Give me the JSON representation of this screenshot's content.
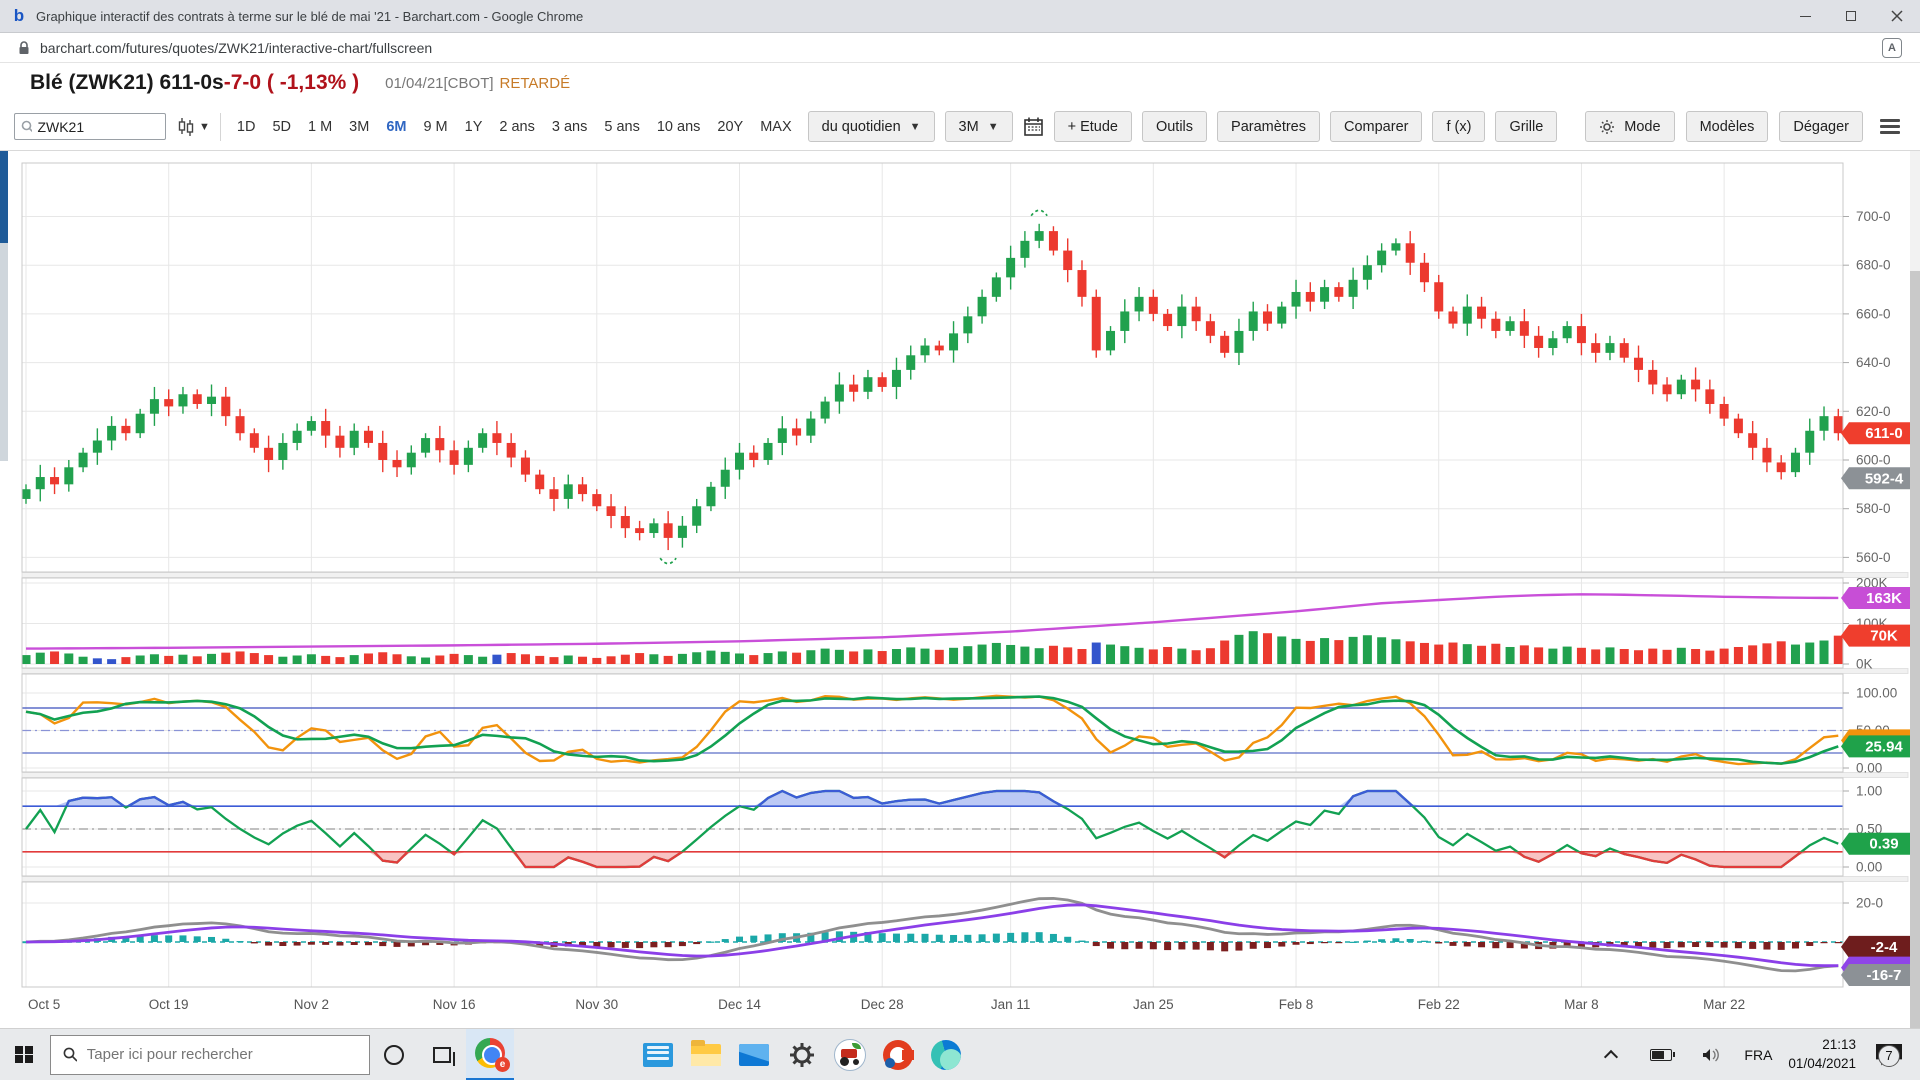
{
  "window": {
    "title": "Graphique interactif des contrats à terme sur le blé de mai '21 - Barchart.com - Google Chrome"
  },
  "browser": {
    "url": "barchart.com/futures/quotes/ZWK21/interactive-chart/fullscreen"
  },
  "header": {
    "title": "Blé (ZWK21) 611-0s",
    "change": "-7-0 ( -1,13% )",
    "session_date": "01/04/21",
    "exchange": "[CBOT]",
    "delay_label": "RETARDÉ"
  },
  "toolbar": {
    "symbol_value": "ZWK21",
    "ranges": [
      "1D",
      "5D",
      "1 M",
      "3M",
      "6M",
      "9 M",
      "1Y",
      "2 ans",
      "3 ans",
      "5 ans",
      "10 ans",
      "20Y",
      "MAX"
    ],
    "active_range": "6M",
    "frequency_select": "du quotidien",
    "window_select": "3M",
    "study_button": "+ Etude",
    "tools_button": "Outils",
    "settings_button": "Paramètres",
    "compare_button": "Comparer",
    "fx_button": "f (x)",
    "grid_button": "Grille",
    "mode_button": "Mode",
    "models_button": "Modèles",
    "clear_button": "Dégager"
  },
  "taskbar": {
    "search_placeholder": "Taper ici pour rechercher",
    "language": "FRA",
    "time": "21:13",
    "date": "01/04/2021",
    "notification_count": "7"
  },
  "chart_data": {
    "type": "candlestick",
    "symbol": "ZWK21",
    "x_tick_labels": [
      "Oct 5",
      "Oct 19",
      "Nov 2",
      "Nov 16",
      "Nov 30",
      "Dec 14",
      "Dec 28",
      "Jan 11",
      "Jan 25",
      "Feb 8",
      "Feb 22",
      "Mar 8",
      "Mar 22"
    ],
    "x_tick_indices": [
      0,
      10,
      20,
      30,
      40,
      50,
      60,
      69,
      79,
      89,
      99,
      109,
      119
    ],
    "price_panel": {
      "ylim": [
        554,
        722
      ],
      "grid_values": [
        560,
        580,
        600,
        620,
        640,
        660,
        680,
        700
      ],
      "grid_labels": [
        "560-0",
        "580-0",
        "600-0",
        "620-0",
        "640-0",
        "660-0",
        "680-0",
        "700-0"
      ],
      "last_price_badge": {
        "label": "611-0",
        "value": 611
      },
      "secondary_badge": {
        "label": "592-4",
        "value": 592.5
      }
    },
    "first_open": 584,
    "closes": [
      588,
      593,
      590,
      597,
      603,
      608,
      614,
      611,
      619,
      625,
      622,
      627,
      623,
      626,
      618,
      611,
      605,
      600,
      607,
      612,
      616,
      610,
      605,
      612,
      607,
      600,
      597,
      603,
      609,
      604,
      598,
      605,
      611,
      607,
      601,
      594,
      588,
      584,
      590,
      586,
      581,
      577,
      572,
      570,
      574,
      568,
      573,
      581,
      589,
      596,
      603,
      600,
      607,
      613,
      610,
      617,
      624,
      631,
      628,
      634,
      630,
      637,
      643,
      647,
      645,
      652,
      659,
      667,
      675,
      683,
      690,
      694,
      686,
      678,
      667,
      645,
      653,
      661,
      667,
      660,
      655,
      663,
      657,
      651,
      644,
      653,
      661,
      656,
      663,
      669,
      665,
      671,
      667,
      674,
      680,
      686,
      689,
      681,
      673,
      661,
      656,
      663,
      658,
      653,
      657,
      651,
      646,
      650,
      655,
      648,
      644,
      648,
      642,
      637,
      631,
      627,
      633,
      629,
      623,
      617,
      611,
      605,
      599,
      595,
      603,
      612,
      618,
      611
    ],
    "volume_panel": {
      "ylim": [
        0,
        210
      ],
      "grid_values": [
        200,
        100,
        0
      ],
      "grid_labels": [
        "200K",
        "100K",
        "0K"
      ],
      "volumes": [
        22,
        28,
        31,
        26,
        18,
        14,
        12,
        17,
        21,
        24,
        20,
        23,
        19,
        25,
        28,
        31,
        27,
        22,
        18,
        21,
        24,
        20,
        17,
        22,
        26,
        29,
        24,
        19,
        16,
        21,
        25,
        22,
        18,
        23,
        27,
        24,
        20,
        17,
        21,
        18,
        15,
        19,
        23,
        27,
        24,
        20,
        25,
        29,
        33,
        30,
        26,
        22,
        27,
        31,
        28,
        34,
        38,
        35,
        31,
        36,
        32,
        37,
        41,
        38,
        35,
        40,
        44,
        48,
        52,
        47,
        43,
        39,
        45,
        41,
        37,
        53,
        48,
        44,
        40,
        36,
        42,
        38,
        34,
        39,
        58,
        72,
        81,
        76,
        68,
        62,
        57,
        64,
        59,
        67,
        71,
        66,
        61,
        56,
        52,
        48,
        53,
        49,
        45,
        50,
        42,
        46,
        41,
        38,
        43,
        40,
        36,
        41,
        37,
        34,
        38,
        35,
        40,
        37,
        33,
        38,
        42,
        46,
        51,
        56,
        48,
        53,
        58,
        70
      ],
      "blue_indices": [
        5,
        6,
        33,
        75
      ],
      "volume_badge": {
        "label": "70K",
        "value": 70
      },
      "open_interest_badge": {
        "label": "163K",
        "value": 163
      },
      "open_interest_points": [
        [
          0,
          38
        ],
        [
          10,
          40
        ],
        [
          20,
          43
        ],
        [
          30,
          46
        ],
        [
          40,
          50
        ],
        [
          50,
          56
        ],
        [
          60,
          66
        ],
        [
          69,
          80
        ],
        [
          79,
          103
        ],
        [
          89,
          130
        ],
        [
          95,
          150
        ],
        [
          100,
          160
        ],
        [
          103,
          166
        ],
        [
          106,
          170
        ],
        [
          109,
          172
        ],
        [
          112,
          171
        ],
        [
          115,
          169
        ],
        [
          119,
          166
        ],
        [
          123,
          164
        ],
        [
          127,
          163
        ]
      ]
    },
    "stochastic_panel": {
      "k_period": 14,
      "k_smoothing": 3,
      "upper_band": 80,
      "mid_band": 50,
      "lower_band": 20,
      "grid_values": [
        100,
        50,
        0
      ],
      "grid_labels": [
        "100.00",
        "50.00",
        "0.00"
      ],
      "badge": {
        "label": "25.94"
      }
    },
    "percent_b_panel": {
      "period": 20,
      "upper_band": 0.8,
      "mid_band": 0.5,
      "lower_band": 0.2,
      "grid_values": [
        1,
        0.5,
        0
      ],
      "grid_labels": [
        "1.00",
        "0.50",
        "0.00"
      ],
      "badge": {
        "label": "0.39"
      }
    },
    "macd_panel": {
      "fast": 12,
      "slow": 26,
      "signal": 9,
      "grid_values": [
        20
      ],
      "grid_labels": [
        "20-0"
      ],
      "hist_badge": {
        "label": "-2-4",
        "value": -2.5
      },
      "line_badge": {
        "label": "-16-7",
        "value": -16.9
      },
      "signal_value": -15.2
    },
    "annotations": [
      {
        "type": "dashed-arc",
        "direction": "above",
        "index": 71
      },
      {
        "type": "dashed-arc",
        "direction": "below",
        "index": 45
      }
    ],
    "colors": {
      "up": "#21a14e",
      "down": "#ec392f",
      "neutral_volume": "#3355cc",
      "open_interest": "#c94fd9",
      "stoch_k": "#f2930d",
      "stoch_d": "#12a152",
      "band_line": "#5b6dc8",
      "mid_line": "#8a93d6",
      "pb_upper_line": "#3c5bd6",
      "pb_upper_fill": "#bcc9f5",
      "pb_lower_line": "#e23b3b",
      "pb_lower_fill": "#f8c3c3",
      "pb_mid": "#9a9a9a",
      "pb_line": "#12a152",
      "macd_line": "#8f8f8f",
      "macd_signal": "#8b3fe8",
      "hist_pos": "#1ba8a8",
      "hist_neg": "#7c1f1f",
      "grid": "#e7e7e7",
      "panel_border": "#c9c9c9",
      "axis_text": "#666666",
      "badge_price": "#ef3e2d",
      "badge_gray": "#8c9196",
      "badge_oi": "#c74ed6",
      "badge_vol": "#ef3e2d",
      "badge_green": "#1fa24a",
      "badge_orange": "#f2930d",
      "badge_maroon": "#6e1d1d",
      "badge_purple": "#8f45e8"
    }
  }
}
